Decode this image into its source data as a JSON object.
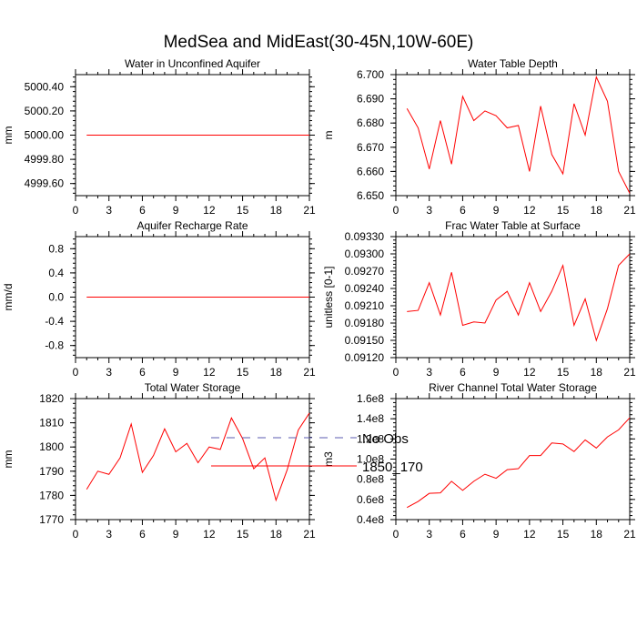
{
  "figure": {
    "title": "MedSea and MidEast(30-45N,10W-60E)"
  },
  "legend": {
    "items": [
      {
        "label": "No Obs",
        "color": "#5b5bb0",
        "dash": true
      },
      {
        "label": "1850_170",
        "color": "#ff0000",
        "dash": false
      }
    ]
  },
  "colors": {
    "series": "#ff0000",
    "axis": "#000000"
  },
  "chart_data": [
    {
      "type": "line",
      "title": "Water in Unconfined Aquifer",
      "ylabel": "mm",
      "xlim": [
        0,
        21
      ],
      "ylim": [
        4999.5,
        5000.5
      ],
      "xticks": [
        0,
        3,
        6,
        9,
        12,
        15,
        18,
        21
      ],
      "yticks": [
        4999.6,
        4999.8,
        5000.0,
        5000.2,
        5000.4
      ],
      "ytick_labels": [
        "4999.60",
        "4999.80",
        "5000.00",
        "5000.20",
        "5000.40"
      ],
      "series": [
        {
          "x": [
            1,
            21
          ],
          "values": [
            5000.0,
            5000.0
          ]
        }
      ]
    },
    {
      "type": "line",
      "title": "Water Table Depth",
      "ylabel": "m",
      "xlim": [
        0,
        21
      ],
      "ylim": [
        6.65,
        6.7
      ],
      "xticks": [
        0,
        3,
        6,
        9,
        12,
        15,
        18,
        21
      ],
      "yticks": [
        6.65,
        6.66,
        6.67,
        6.68,
        6.69,
        6.7
      ],
      "ytick_labels": [
        "6.650",
        "6.660",
        "6.670",
        "6.680",
        "6.690",
        "6.700"
      ],
      "series": [
        {
          "x": [
            1,
            2,
            3,
            4,
            5,
            6,
            7,
            8,
            9,
            10,
            11,
            12,
            13,
            14,
            15,
            16,
            17,
            18,
            19,
            20,
            21
          ],
          "values": [
            6.686,
            6.678,
            6.661,
            6.681,
            6.663,
            6.691,
            6.681,
            6.685,
            6.683,
            6.678,
            6.679,
            6.66,
            6.687,
            6.667,
            6.659,
            6.688,
            6.675,
            6.699,
            6.689,
            6.66,
            6.651
          ]
        }
      ]
    },
    {
      "type": "line",
      "title": "Aquifer Recharge Rate",
      "ylabel": "mm/d",
      "xlim": [
        0,
        21
      ],
      "ylim": [
        -1.0,
        1.0
      ],
      "xticks": [
        0,
        3,
        6,
        9,
        12,
        15,
        18,
        21
      ],
      "yticks": [
        -0.8,
        -0.4,
        0.0,
        0.4,
        0.8
      ],
      "ytick_labels": [
        "-0.8",
        "-0.4",
        "0.0",
        "0.4",
        "0.8"
      ],
      "series": [
        {
          "x": [
            1,
            21
          ],
          "values": [
            0.0,
            0.0
          ]
        }
      ]
    },
    {
      "type": "line",
      "title": "Frac Water Table at Surface",
      "ylabel": "unitless [0-1]",
      "xlim": [
        0,
        21
      ],
      "ylim": [
        0.0912,
        0.0933
      ],
      "xticks": [
        0,
        3,
        6,
        9,
        12,
        15,
        18,
        21
      ],
      "yticks": [
        0.0912,
        0.0915,
        0.0918,
        0.0921,
        0.0924,
        0.0927,
        0.093,
        0.0933
      ],
      "ytick_labels": [
        "0.09120",
        "0.09150",
        "0.09180",
        "0.09210",
        "0.09240",
        "0.09270",
        "0.09300",
        "0.09330"
      ],
      "series": [
        {
          "x": [
            1,
            2,
            3,
            4,
            5,
            6,
            7,
            8,
            9,
            10,
            11,
            12,
            13,
            14,
            15,
            16,
            17,
            18,
            19,
            20,
            21
          ],
          "values": [
            0.092,
            0.09202,
            0.0925,
            0.09194,
            0.09268,
            0.09176,
            0.09182,
            0.0918,
            0.0922,
            0.09235,
            0.09194,
            0.0925,
            0.092,
            0.09235,
            0.0928,
            0.09176,
            0.09222,
            0.0915,
            0.09205,
            0.0928,
            0.093
          ]
        }
      ]
    },
    {
      "type": "line",
      "title": "Total Water Storage",
      "ylabel": "mm",
      "xlim": [
        0,
        21
      ],
      "ylim": [
        1770,
        1820
      ],
      "xticks": [
        0,
        3,
        6,
        9,
        12,
        15,
        18,
        21
      ],
      "yticks": [
        1770,
        1780,
        1790,
        1800,
        1810,
        1820
      ],
      "ytick_labels": [
        "1770",
        "1780",
        "1790",
        "1800",
        "1810",
        "1820"
      ],
      "series": [
        {
          "x": [
            1,
            2,
            3,
            4,
            5,
            6,
            7,
            8,
            9,
            10,
            11,
            12,
            13,
            14,
            15,
            16,
            17,
            18,
            19,
            20,
            21
          ],
          "values": [
            1782.5,
            1790.0,
            1788.7,
            1795.5,
            1809.5,
            1789.5,
            1796.5,
            1807.5,
            1798.0,
            1801.5,
            1793.5,
            1800.0,
            1799.0,
            1812.0,
            1803.5,
            1791.0,
            1795.5,
            1778.0,
            1790.5,
            1807.0,
            1814.0
          ]
        }
      ]
    },
    {
      "type": "line",
      "title": "River Channel Total Water Storage",
      "ylabel": "m3",
      "xlim": [
        0,
        21
      ],
      "ylim": [
        40000000.0,
        160000000.0
      ],
      "xticks": [
        0,
        3,
        6,
        9,
        12,
        15,
        18,
        21
      ],
      "yticks": [
        40000000.0,
        60000000.0,
        80000000.0,
        100000000.0,
        120000000.0,
        140000000.0,
        160000000.0
      ],
      "ytick_labels": [
        "0.4e8",
        "0.6e8",
        "0.8e8",
        "1.0e8",
        "1.2e8",
        "1.4e8",
        "1.6e8"
      ],
      "series": [
        {
          "x": [
            1,
            2,
            3,
            4,
            5,
            6,
            7,
            8,
            9,
            10,
            11,
            12,
            13,
            14,
            15,
            16,
            17,
            18,
            19,
            20,
            21
          ],
          "values": [
            52000000.0,
            58000000.0,
            66000000.0,
            66500000.0,
            78000000.0,
            69000000.0,
            78000000.0,
            85000000.0,
            81000000.0,
            89500000.0,
            90500000.0,
            103500000.0,
            103500000.0,
            116000000.0,
            115000000.0,
            107500000.0,
            119000000.0,
            111000000.0,
            122000000.0,
            129000000.0,
            141000000.0
          ]
        }
      ]
    }
  ]
}
